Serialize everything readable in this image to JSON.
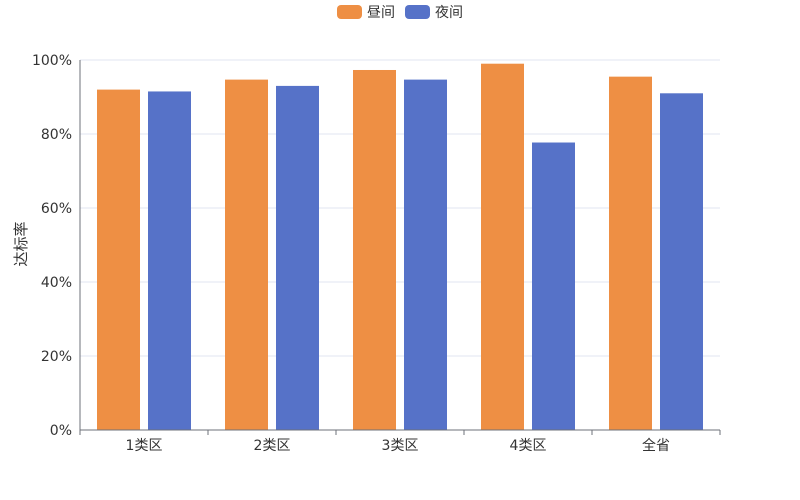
{
  "chart_data": {
    "type": "bar",
    "categories": [
      "1类区",
      "2类区",
      "3类区",
      "4类区",
      "全省"
    ],
    "series": [
      {
        "name": "昼间",
        "values": [
          92,
          94.7,
          97.3,
          99,
          95.5
        ],
        "color": "#ee8f44"
      },
      {
        "name": "夜间",
        "values": [
          91.5,
          93,
          94.7,
          77.7,
          91
        ],
        "color": "#5672c8"
      }
    ],
    "ylabel": "达标率",
    "ylim": [
      0,
      100
    ],
    "yticks": [
      "0%",
      "20%",
      "40%",
      "60%",
      "80%",
      "100%"
    ],
    "grid": true,
    "legend_position": "top-center"
  }
}
